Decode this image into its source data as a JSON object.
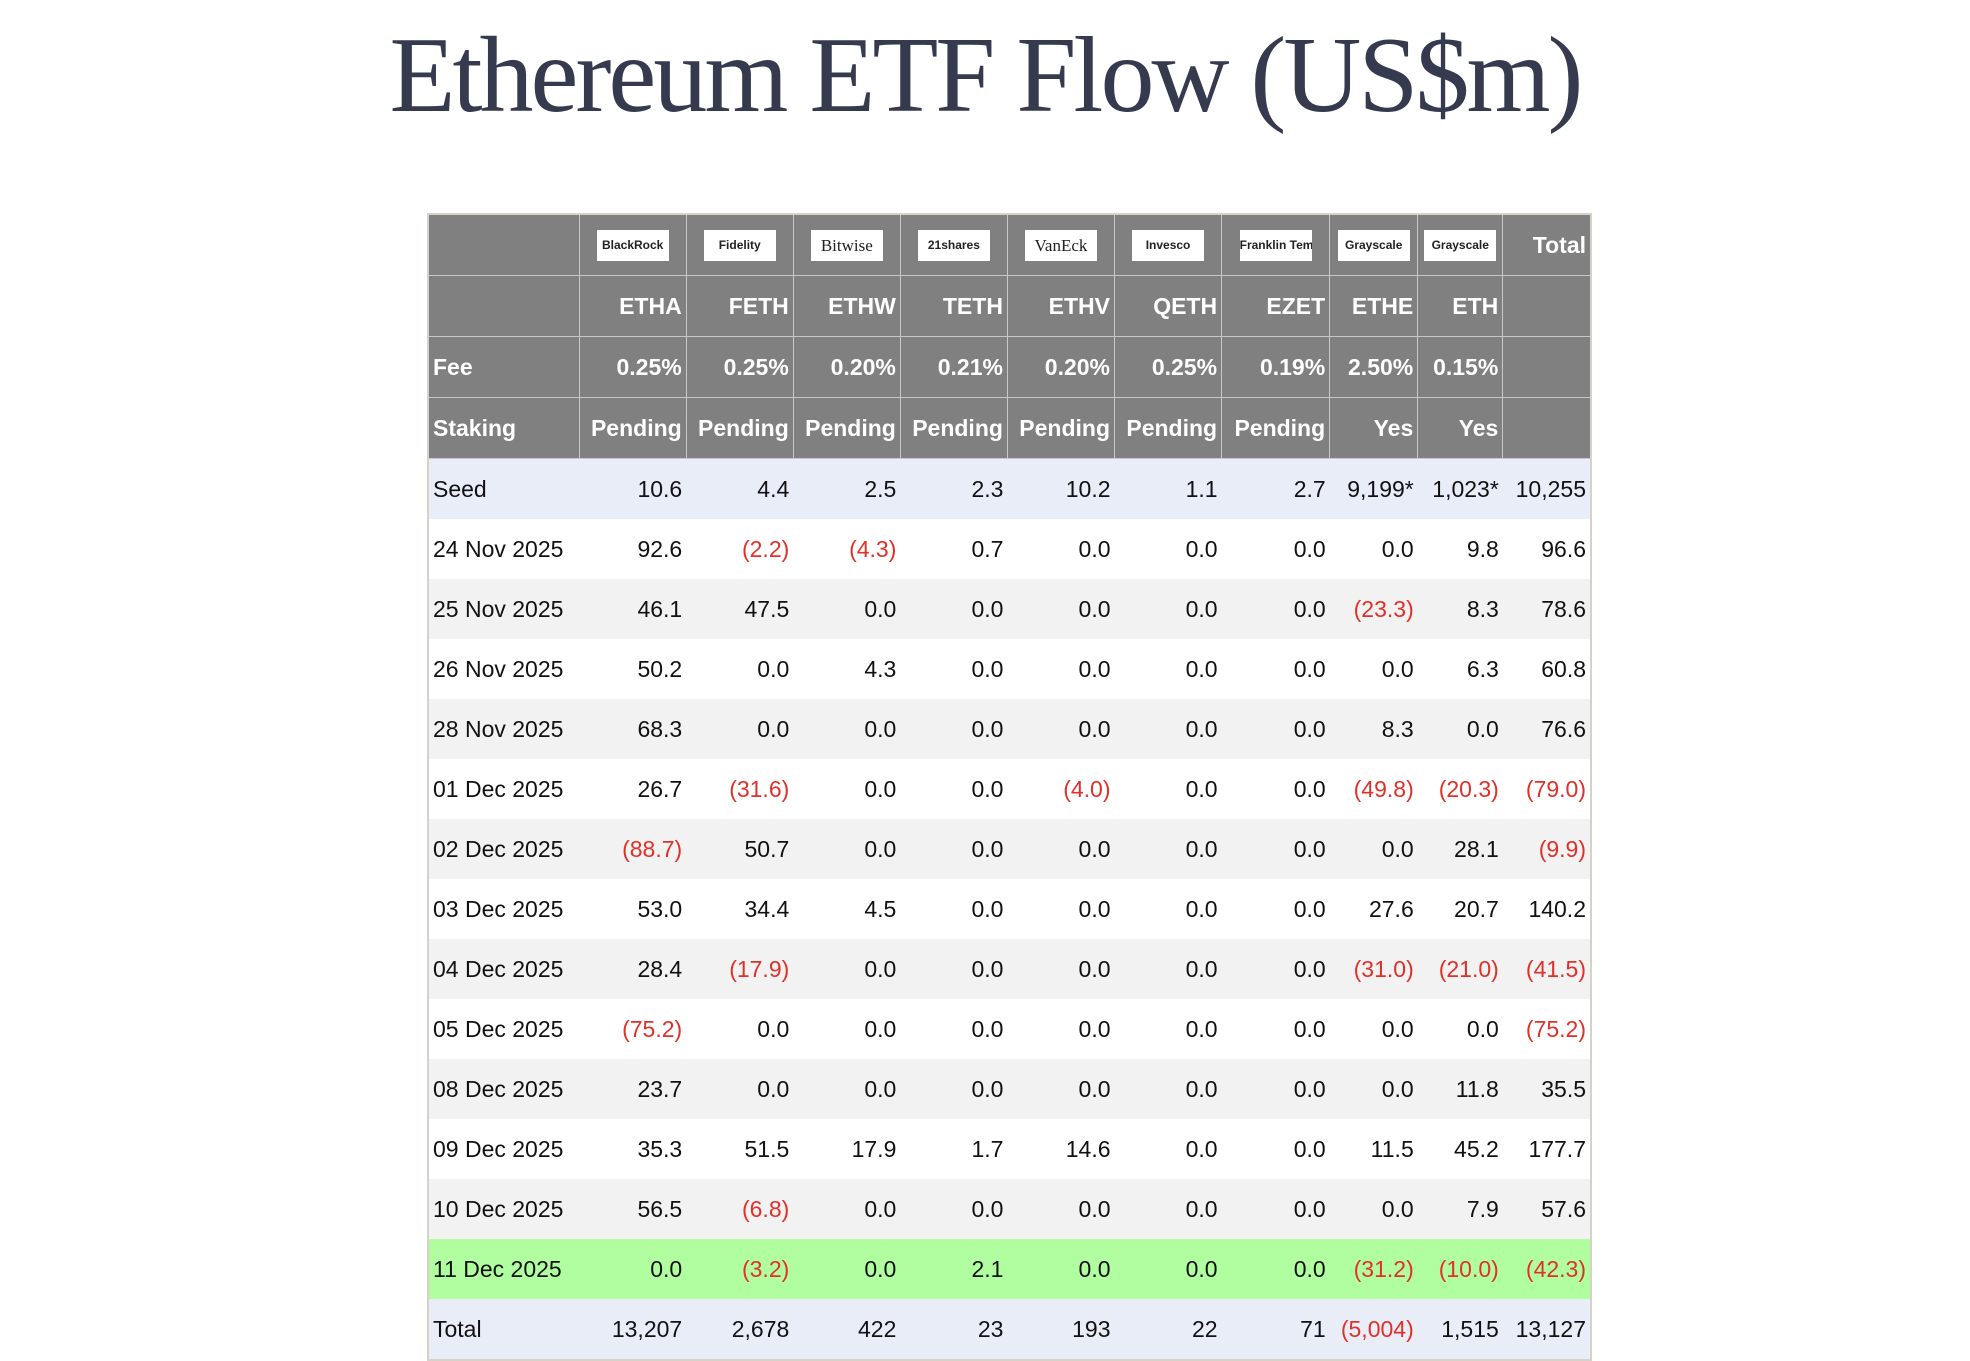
{
  "title": "Ethereum ETF Flow (US$m)",
  "colors": {
    "header_bg": "#808080",
    "negative": "#e0302a",
    "highlight": "#b0fea0",
    "seed_total_bg": "#e9edf7",
    "title": "#353a4f"
  },
  "header": {
    "issuers": [
      "BlackRock",
      "Fidelity",
      "Bitwise",
      "21shares",
      "VanEck",
      "Invesco",
      "Franklin Templeton",
      "Grayscale",
      "Grayscale"
    ],
    "total_label": "Total",
    "tickers": [
      "ETHA",
      "FETH",
      "ETHW",
      "TETH",
      "ETHV",
      "QETH",
      "EZET",
      "ETHE",
      "ETH"
    ],
    "fee_label": "Fee",
    "fees": [
      "0.25%",
      "0.25%",
      "0.20%",
      "0.21%",
      "0.20%",
      "0.25%",
      "0.19%",
      "2.50%",
      "0.15%"
    ],
    "staking_label": "Staking",
    "staking": [
      "Pending",
      "Pending",
      "Pending",
      "Pending",
      "Pending",
      "Pending",
      "Pending",
      "Yes",
      "Yes"
    ]
  },
  "rows": [
    {
      "label": "Seed",
      "type": "seed",
      "values": [
        "10.6",
        "4.4",
        "2.5",
        "2.3",
        "10.2",
        "1.1",
        "2.7",
        "9,199*",
        "1,023*",
        "10,255"
      ]
    },
    {
      "label": "24 Nov 2025",
      "values": [
        "92.6",
        "(2.2)",
        "(4.3)",
        "0.7",
        "0.0",
        "0.0",
        "0.0",
        "0.0",
        "9.8",
        "96.6"
      ]
    },
    {
      "label": "25 Nov 2025",
      "values": [
        "46.1",
        "47.5",
        "0.0",
        "0.0",
        "0.0",
        "0.0",
        "0.0",
        "(23.3)",
        "8.3",
        "78.6"
      ]
    },
    {
      "label": "26 Nov 2025",
      "values": [
        "50.2",
        "0.0",
        "4.3",
        "0.0",
        "0.0",
        "0.0",
        "0.0",
        "0.0",
        "6.3",
        "60.8"
      ]
    },
    {
      "label": "28 Nov 2025",
      "values": [
        "68.3",
        "0.0",
        "0.0",
        "0.0",
        "0.0",
        "0.0",
        "0.0",
        "8.3",
        "0.0",
        "76.6"
      ]
    },
    {
      "label": "01 Dec 2025",
      "values": [
        "26.7",
        "(31.6)",
        "0.0",
        "0.0",
        "(4.0)",
        "0.0",
        "0.0",
        "(49.8)",
        "(20.3)",
        "(79.0)"
      ]
    },
    {
      "label": "02 Dec 2025",
      "values": [
        "(88.7)",
        "50.7",
        "0.0",
        "0.0",
        "0.0",
        "0.0",
        "0.0",
        "0.0",
        "28.1",
        "(9.9)"
      ]
    },
    {
      "label": "03 Dec 2025",
      "values": [
        "53.0",
        "34.4",
        "4.5",
        "0.0",
        "0.0",
        "0.0",
        "0.0",
        "27.6",
        "20.7",
        "140.2"
      ]
    },
    {
      "label": "04 Dec 2025",
      "values": [
        "28.4",
        "(17.9)",
        "0.0",
        "0.0",
        "0.0",
        "0.0",
        "0.0",
        "(31.0)",
        "(21.0)",
        "(41.5)"
      ]
    },
    {
      "label": "05 Dec 2025",
      "values": [
        "(75.2)",
        "0.0",
        "0.0",
        "0.0",
        "0.0",
        "0.0",
        "0.0",
        "0.0",
        "0.0",
        "(75.2)"
      ]
    },
    {
      "label": "08 Dec 2025",
      "values": [
        "23.7",
        "0.0",
        "0.0",
        "0.0",
        "0.0",
        "0.0",
        "0.0",
        "0.0",
        "11.8",
        "35.5"
      ]
    },
    {
      "label": "09 Dec 2025",
      "values": [
        "35.3",
        "51.5",
        "17.9",
        "1.7",
        "14.6",
        "0.0",
        "0.0",
        "11.5",
        "45.2",
        "177.7"
      ]
    },
    {
      "label": "10 Dec 2025",
      "values": [
        "56.5",
        "(6.8)",
        "0.0",
        "0.0",
        "0.0",
        "0.0",
        "0.0",
        "0.0",
        "7.9",
        "57.6"
      ]
    },
    {
      "label": "11 Dec 2025",
      "type": "highlight",
      "values": [
        "0.0",
        "(3.2)",
        "0.0",
        "2.1",
        "0.0",
        "0.0",
        "0.0",
        "(31.2)",
        "(10.0)",
        "(42.3)"
      ]
    },
    {
      "label": "Total",
      "type": "total",
      "values": [
        "13,207",
        "2,678",
        "422",
        "23",
        "193",
        "22",
        "71",
        "(5,004)",
        "1,515",
        "13,127"
      ]
    }
  ]
}
